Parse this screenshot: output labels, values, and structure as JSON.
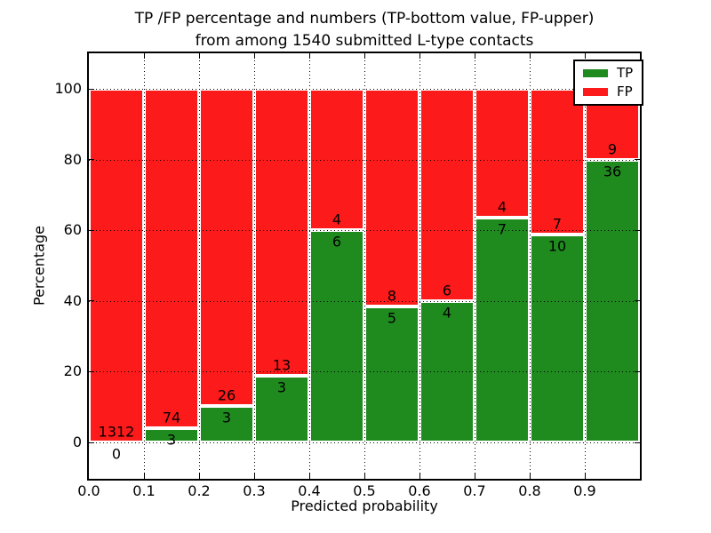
{
  "figure": {
    "title_line1": "TP /FP percentage and numbers (TP-bottom value, FP-upper)",
    "title_line2": "from among 1540 submitted L-type contacts"
  },
  "axes": {
    "xlabel": "Predicted probability",
    "ylabel": "Percentage",
    "x_tick_labels": [
      "0.0",
      "0.1",
      "0.2",
      "0.3",
      "0.4",
      "0.5",
      "0.6",
      "0.7",
      "0.8",
      "0.9"
    ],
    "y_tick_labels": [
      "0",
      "20",
      "40",
      "60",
      "80",
      "100"
    ],
    "y_tick_values": [
      0,
      20,
      40,
      60,
      80,
      100
    ]
  },
  "legend": {
    "entries": [
      {
        "label": "TP",
        "color": "#1f8b1f"
      },
      {
        "label": "FP",
        "color": "#fc1a1a"
      }
    ]
  },
  "chart_data": {
    "type": "bar",
    "stacked": true,
    "title": "TP /FP percentage and numbers (TP-bottom value, FP-upper) from among 1540 submitted L-type contacts",
    "xlabel": "Predicted probability",
    "ylabel": "Percentage",
    "xlim": [
      0.0,
      1.0
    ],
    "ylim": [
      -10.3,
      110.1
    ],
    "grid": "dotted",
    "legend_position": "upper-right",
    "total_contacts": 1540,
    "bin_width": 0.1,
    "bin_starts": [
      0.0,
      0.1,
      0.2,
      0.3,
      0.4,
      0.5,
      0.6,
      0.7,
      0.8,
      0.9
    ],
    "series": [
      {
        "name": "TP",
        "color": "#1f8b1f",
        "counts": [
          0,
          3,
          3,
          3,
          6,
          5,
          4,
          7,
          10,
          36
        ],
        "pct_of_bin": [
          0.0,
          3.9,
          10.3,
          18.8,
          60.0,
          38.5,
          40.0,
          63.6,
          58.8,
          80.0
        ]
      },
      {
        "name": "FP",
        "color": "#fc1a1a",
        "counts": [
          1312,
          74,
          26,
          13,
          4,
          8,
          6,
          4,
          7,
          9
        ],
        "pct_of_bin": [
          100.0,
          96.1,
          89.7,
          81.2,
          40.0,
          61.5,
          60.0,
          36.4,
          41.2,
          20.0
        ]
      }
    ]
  }
}
